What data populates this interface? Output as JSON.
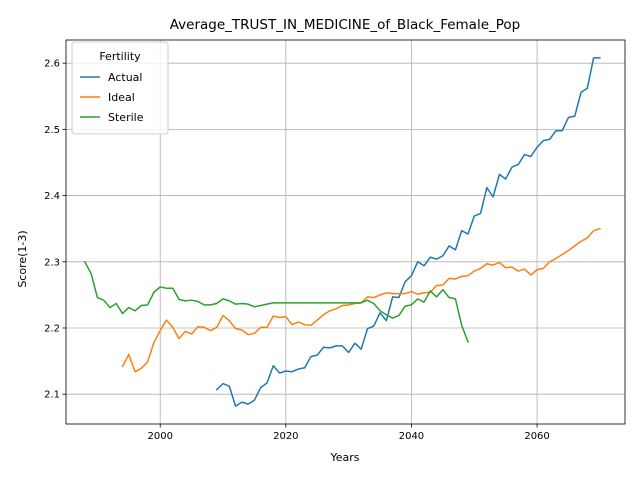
{
  "chart_data": {
    "type": "line",
    "title": "Average_TRUST_IN_MEDICINE_of_Black_Female_Pop",
    "xlabel": "Years",
    "ylabel": "Score(1-3)",
    "xlim": [
      1985,
      2074
    ],
    "ylim": [
      2.055,
      2.635
    ],
    "x_ticks": [
      2000,
      2020,
      2040,
      2060
    ],
    "y_ticks": [
      2.1,
      2.2,
      2.3,
      2.4,
      2.5,
      2.6
    ],
    "x_tick_labels": [
      "2000",
      "2020",
      "2040",
      "2060"
    ],
    "y_tick_labels": [
      "2.1",
      "2.2",
      "2.3",
      "2.4",
      "2.5",
      "2.6"
    ],
    "grid": true,
    "legend": {
      "title": "Fertility",
      "position": "top-left"
    },
    "series": [
      {
        "name": "Actual",
        "color": "#1f77b4",
        "x": [
          2009,
          2010,
          2011,
          2012,
          2013,
          2014,
          2015,
          2016,
          2017,
          2018,
          2019,
          2020,
          2021,
          2022,
          2023,
          2024,
          2025,
          2026,
          2027,
          2028,
          2029,
          2030,
          2031,
          2032,
          2033,
          2034,
          2035,
          2036,
          2037,
          2038,
          2039,
          2040,
          2041,
          2042,
          2043,
          2044,
          2045,
          2046,
          2047,
          2048,
          2049,
          2050,
          2051,
          2052,
          2053,
          2054,
          2055,
          2056,
          2057,
          2058,
          2059,
          2060,
          2061,
          2062,
          2063,
          2064,
          2065,
          2066,
          2067,
          2068,
          2069,
          2070
        ],
        "values": [
          2.107,
          2.116,
          2.112,
          2.082,
          2.088,
          2.085,
          2.091,
          2.11,
          2.117,
          2.143,
          2.132,
          2.135,
          2.134,
          2.138,
          2.14,
          2.157,
          2.159,
          2.171,
          2.17,
          2.173,
          2.173,
          2.163,
          2.177,
          2.168,
          2.199,
          2.203,
          2.223,
          2.211,
          2.247,
          2.246,
          2.27,
          2.279,
          2.3,
          2.294,
          2.307,
          2.304,
          2.309,
          2.324,
          2.318,
          2.347,
          2.342,
          2.369,
          2.373,
          2.412,
          2.398,
          2.432,
          2.425,
          2.443,
          2.447,
          2.462,
          2.459,
          2.473,
          2.483,
          2.485,
          2.498,
          2.498,
          2.518,
          2.52,
          2.556,
          2.562,
          2.608,
          2.608
        ]
      },
      {
        "name": "Ideal",
        "color": "#ff7f0e",
        "x": [
          1994,
          1995,
          1996,
          1997,
          1998,
          1999,
          2000,
          2001,
          2002,
          2003,
          2004,
          2005,
          2006,
          2007,
          2008,
          2009,
          2010,
          2011,
          2012,
          2013,
          2014,
          2015,
          2016,
          2017,
          2018,
          2019,
          2020,
          2021,
          2022,
          2023,
          2024,
          2025,
          2026,
          2027,
          2028,
          2029,
          2030,
          2031,
          2032,
          2033,
          2034,
          2035,
          2036,
          2037,
          2038,
          2039,
          2040,
          2041,
          2042,
          2043,
          2044,
          2045,
          2046,
          2047,
          2048,
          2049,
          2050,
          2051,
          2052,
          2053,
          2054,
          2055,
          2056,
          2057,
          2058,
          2059,
          2060,
          2061,
          2062,
          2063,
          2064,
          2065,
          2066,
          2067,
          2068,
          2069,
          2070
        ],
        "values": [
          2.142,
          2.16,
          2.134,
          2.139,
          2.149,
          2.178,
          2.196,
          2.212,
          2.201,
          2.184,
          2.195,
          2.191,
          2.202,
          2.201,
          2.196,
          2.201,
          2.219,
          2.211,
          2.199,
          2.197,
          2.19,
          2.192,
          2.201,
          2.201,
          2.218,
          2.216,
          2.217,
          2.205,
          2.209,
          2.205,
          2.204,
          2.212,
          2.22,
          2.226,
          2.229,
          2.234,
          2.235,
          2.237,
          2.238,
          2.247,
          2.246,
          2.25,
          2.253,
          2.252,
          2.252,
          2.252,
          2.255,
          2.251,
          2.253,
          2.254,
          2.264,
          2.265,
          2.275,
          2.274,
          2.278,
          2.279,
          2.286,
          2.29,
          2.297,
          2.295,
          2.299,
          2.291,
          2.292,
          2.286,
          2.289,
          2.28,
          2.288,
          2.29,
          2.3,
          2.305,
          2.311,
          2.317,
          2.324,
          2.331,
          2.336,
          2.347,
          2.35
        ]
      },
      {
        "name": "Sterile",
        "color": "#2ca02c",
        "x": [
          1988,
          1989,
          1990,
          1991,
          1992,
          1993,
          1994,
          1995,
          1996,
          1997,
          1998,
          1999,
          2000,
          2001,
          2002,
          2003,
          2004,
          2005,
          2006,
          2007,
          2008,
          2009,
          2010,
          2011,
          2012,
          2013,
          2014,
          2015,
          2016,
          2017,
          2018,
          2019,
          2020,
          2021,
          2022,
          2023,
          2024,
          2025,
          2026,
          2027,
          2028,
          2029,
          2030,
          2031,
          2032,
          2033,
          2034,
          2035,
          2036,
          2037,
          2038,
          2039,
          2040,
          2041,
          2042,
          2043,
          2044,
          2045,
          2046,
          2047,
          2048,
          2049
        ],
        "values": [
          2.3,
          2.282,
          2.246,
          2.242,
          2.231,
          2.237,
          2.222,
          2.231,
          2.226,
          2.234,
          2.235,
          2.254,
          2.262,
          2.26,
          2.26,
          2.243,
          2.241,
          2.242,
          2.24,
          2.235,
          2.235,
          2.237,
          2.244,
          2.241,
          2.236,
          2.237,
          2.236,
          2.232,
          2.234,
          2.236,
          2.238,
          2.238,
          2.238,
          2.238,
          2.238,
          2.238,
          2.238,
          2.238,
          2.238,
          2.238,
          2.238,
          2.238,
          2.238,
          2.238,
          2.238,
          2.242,
          2.237,
          2.226,
          2.22,
          2.215,
          2.219,
          2.233,
          2.235,
          2.244,
          2.239,
          2.256,
          2.247,
          2.258,
          2.246,
          2.244,
          2.204,
          2.179
        ]
      }
    ]
  }
}
